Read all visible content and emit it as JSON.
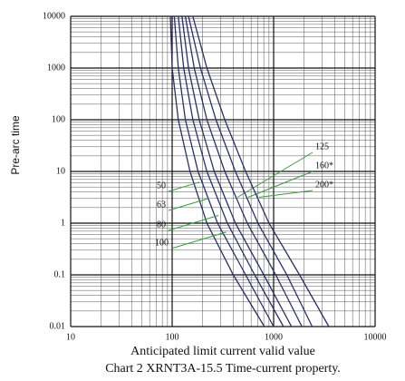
{
  "chart_data": {
    "type": "line",
    "x_label": "Anticipated limit current valid value",
    "caption": "Chart 2 XRNT3A-15.5 Time-current property.",
    "y_label": "Pre-arc time",
    "xscale": "log",
    "yscale": "log",
    "grid": true,
    "xlim": [
      10,
      10000
    ],
    "xticks": [
      10,
      100,
      1000,
      10000
    ],
    "ylim": [
      0.01,
      10000
    ],
    "yticks": [
      0.01,
      0.1,
      1,
      10,
      100,
      1000,
      10000
    ],
    "color": "#2a2f6e",
    "label_line_color": "#3c9a3c",
    "series": [
      {
        "name": "50",
        "x": [
          96,
          100,
          115,
          150,
          220,
          400,
          810
        ],
        "values": [
          10000,
          1000,
          100,
          10,
          1,
          0.1,
          0.01
        ]
      },
      {
        "name": "63",
        "x": [
          105,
          115,
          135,
          180,
          280,
          530,
          1000
        ],
        "values": [
          10000,
          1000,
          100,
          10,
          1,
          0.1,
          0.01
        ]
      },
      {
        "name": "80",
        "x": [
          115,
          130,
          160,
          220,
          350,
          650,
          1250
        ],
        "values": [
          10000,
          1000,
          100,
          10,
          1,
          0.1,
          0.01
        ]
      },
      {
        "name": "100",
        "x": [
          125,
          145,
          185,
          260,
          420,
          800,
          1500
        ],
        "values": [
          10000,
          1000,
          100,
          10,
          1,
          0.1,
          0.01
        ]
      },
      {
        "name": "125",
        "x": [
          135,
          165,
          220,
          330,
          550,
          1050,
          1900
        ],
        "values": [
          10000,
          1000,
          100,
          10,
          1,
          0.1,
          0.01
        ]
      },
      {
        "name": "160*",
        "x": [
          145,
          190,
          270,
          420,
          700,
          1350,
          2400
        ],
        "values": [
          10000,
          1000,
          100,
          10,
          1,
          0.1,
          0.01
        ]
      },
      {
        "name": "200*",
        "x": [
          160,
          220,
          330,
          530,
          900,
          1800,
          3500
        ],
        "values": [
          10000,
          1000,
          100,
          10,
          1,
          0.1,
          0.01
        ]
      }
    ]
  }
}
